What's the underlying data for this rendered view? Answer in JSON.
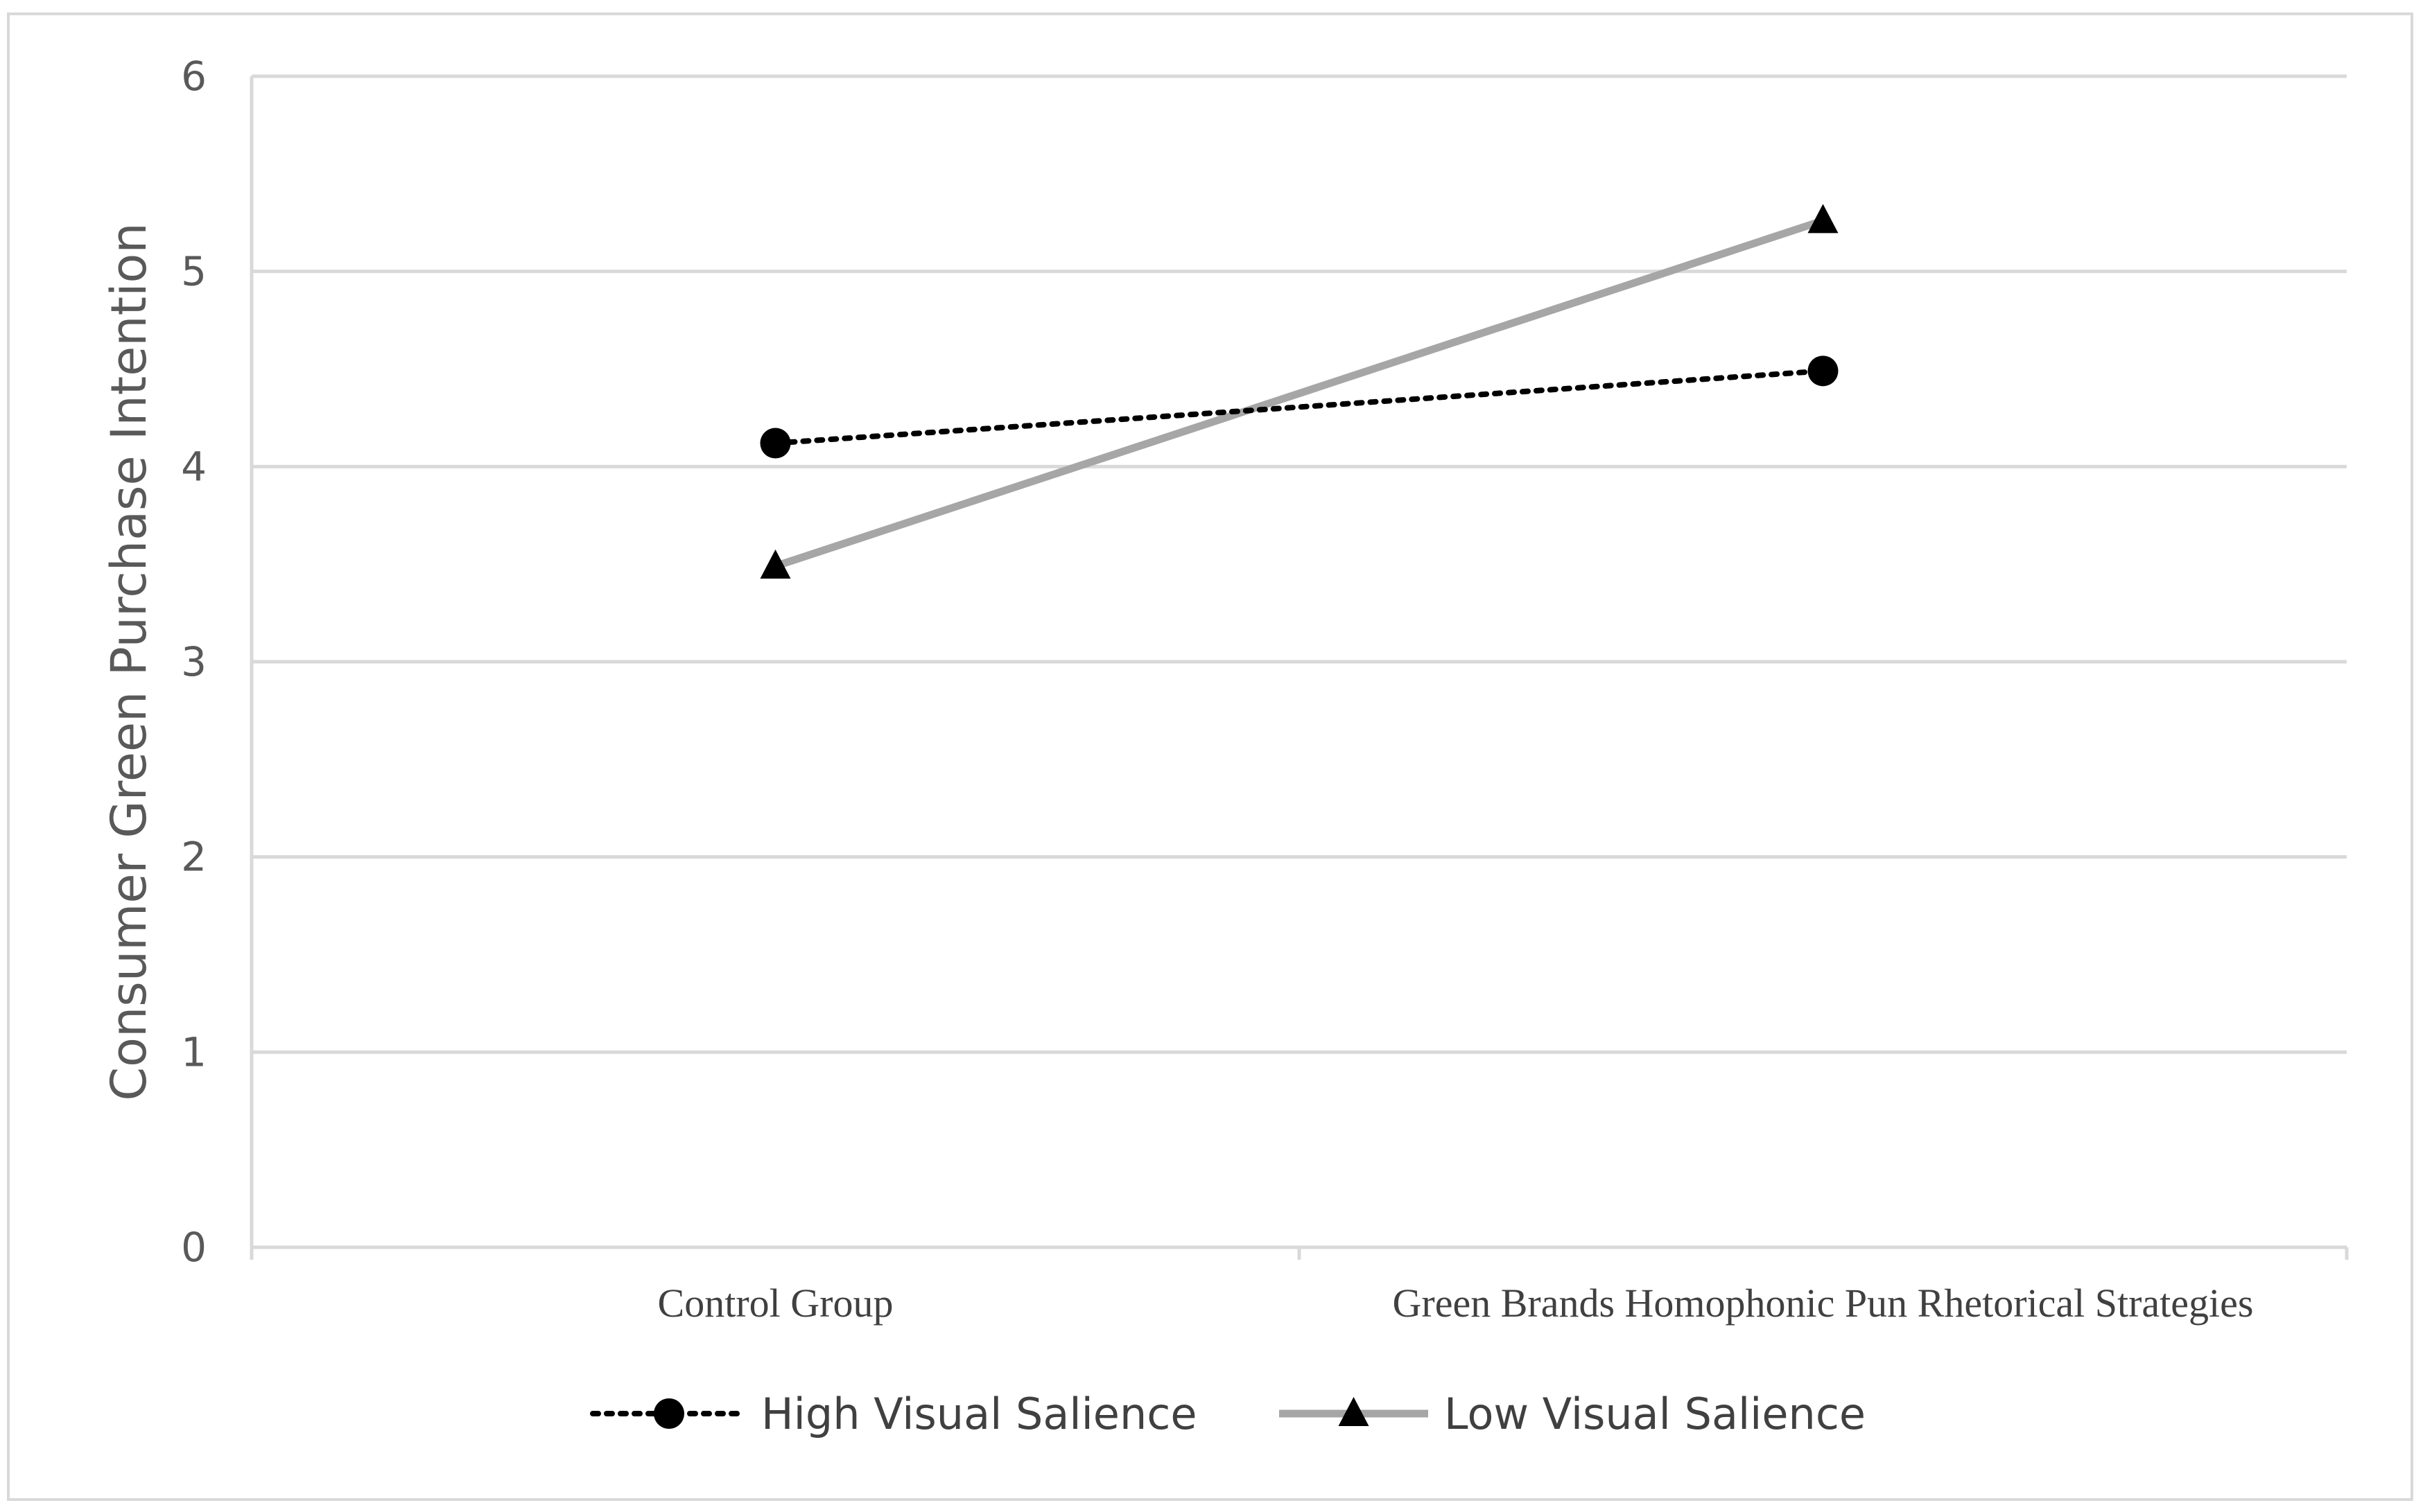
{
  "chart_data": {
    "type": "line",
    "title": "",
    "xlabel": "",
    "ylabel": "Consumer Green Purchase Intention",
    "categories": [
      "Control Group",
      "Green Brands Homophonic Pun Rhetorical Strategies"
    ],
    "ylim": [
      0,
      6
    ],
    "yticks": [
      "0",
      "1",
      "2",
      "3",
      "4",
      "5",
      "6"
    ],
    "grid": true,
    "legend_position": "bottom",
    "series": [
      {
        "name": "High Visual Salience",
        "values": [
          4.12,
          4.49
        ],
        "color": "#000000",
        "line_style": "dotted",
        "marker": "circle"
      },
      {
        "name": "Low Visual Salience",
        "values": [
          3.49,
          5.26
        ],
        "color": "#a6a6a6",
        "line_style": "solid",
        "marker": "triangle"
      }
    ]
  }
}
